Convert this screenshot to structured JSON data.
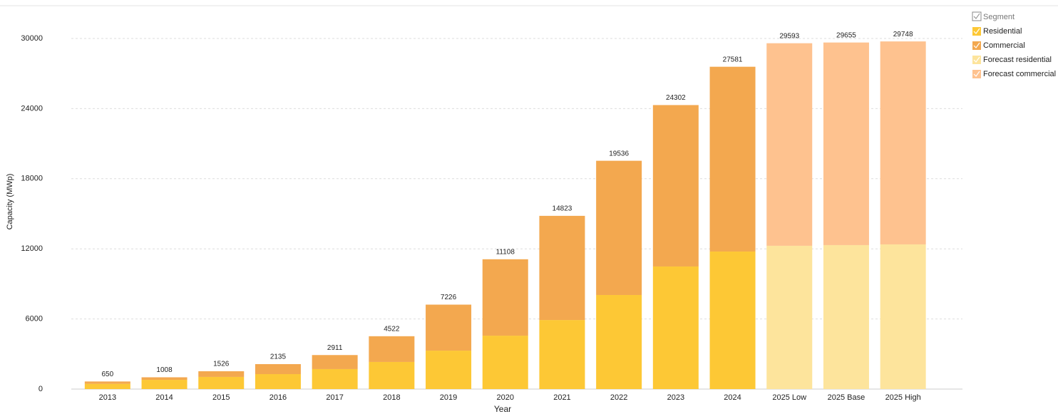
{
  "chart_data": {
    "type": "stacked_bar",
    "x_label": "Year",
    "y_label": "Capacity (MWp)",
    "categories": [
      "2013",
      "2014",
      "2015",
      "2016",
      "2017",
      "2018",
      "2019",
      "2020",
      "2021",
      "2022",
      "2023",
      "2024",
      "2025 Low",
      "2025 Base",
      "2025 High"
    ],
    "legend_title": "Segment",
    "series": [
      {
        "name": "Residential",
        "color": "#fdc835",
        "values": [
          450,
          790,
          1040,
          1280,
          1710,
          2320,
          3290,
          4570,
          5910,
          8050,
          10490,
          11770,
          null,
          null,
          null
        ]
      },
      {
        "name": "Commercial",
        "color": "#f3a84f",
        "values": [
          200,
          218,
          486,
          855,
          1201,
          2202,
          3936,
          6538,
          8913,
          11486,
          13812,
          15811,
          null,
          null,
          null
        ]
      },
      {
        "name": "Forecast residential",
        "color": "#fde49c",
        "values": [
          null,
          null,
          null,
          null,
          null,
          null,
          null,
          null,
          null,
          null,
          null,
          null,
          12260,
          12320,
          12380
        ]
      },
      {
        "name": "Forecast commercial",
        "color": "#fec28f",
        "values": [
          null,
          null,
          null,
          null,
          null,
          null,
          null,
          null,
          null,
          null,
          null,
          null,
          17333,
          17335,
          17368
        ]
      }
    ],
    "totals": [
      650,
      1008,
      1526,
      2135,
      2911,
      4522,
      7226,
      11108,
      14823,
      19536,
      24302,
      27581,
      29593,
      29655,
      29748
    ],
    "ylim": [
      0,
      30000
    ],
    "yticks": [
      0,
      6000,
      12000,
      18000,
      24000,
      30000
    ],
    "grid": true,
    "legend": "top-right"
  }
}
